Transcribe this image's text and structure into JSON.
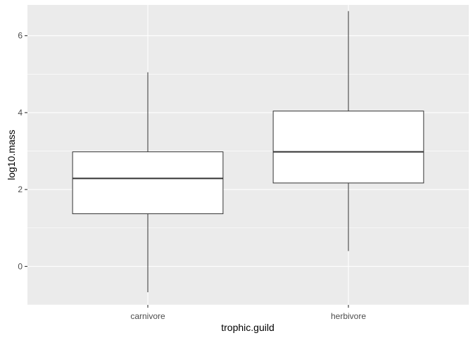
{
  "chart_data": {
    "type": "box",
    "xlabel": "trophic.guild",
    "ylabel": "log10.mass",
    "ylim": [
      -1,
      6.8
    ],
    "y_ticks": [
      0,
      2,
      4,
      6
    ],
    "grid": true,
    "categories": [
      "carnivore",
      "herbivore"
    ],
    "boxes": [
      {
        "category": "carnivore",
        "min": -0.67,
        "q1": 1.37,
        "median": 2.29,
        "q3": 2.98,
        "max": 5.05
      },
      {
        "category": "herbivore",
        "min": 0.4,
        "q1": 2.17,
        "median": 2.98,
        "q3": 4.04,
        "max": 6.64
      }
    ],
    "colors": {
      "panel": "#ebebeb",
      "grid": "#ffffff",
      "box_fill": "#ffffff",
      "box_line": "#333333"
    }
  }
}
